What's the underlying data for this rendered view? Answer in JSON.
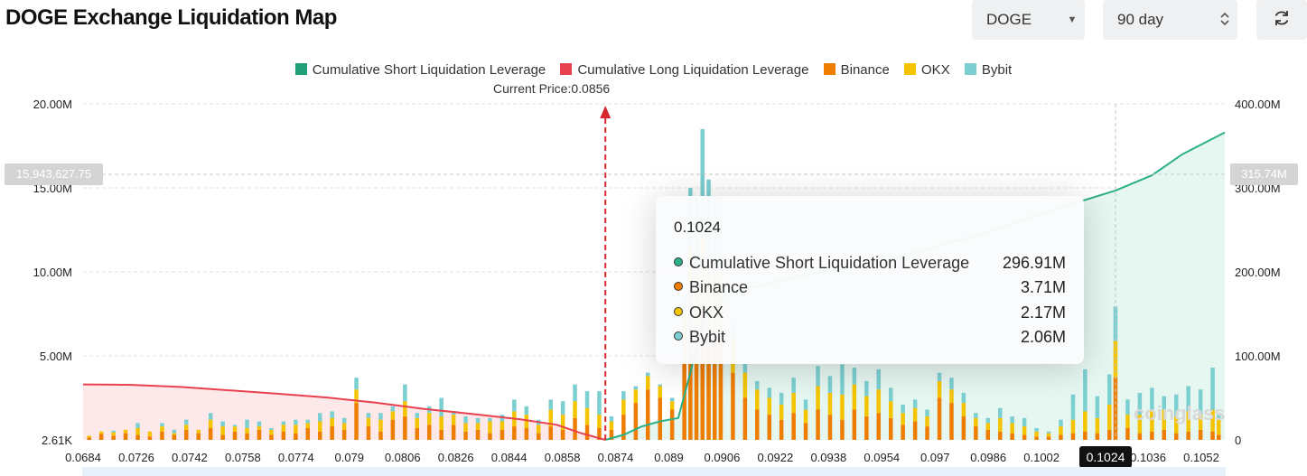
{
  "header": {
    "title": "DOGE Exchange Liquidation Map",
    "coin_select": "DOGE",
    "period_select": "90 day"
  },
  "current_price_label": "Current Price:0.0856",
  "crosshair": {
    "x_label": "0.1024",
    "left_value": "15,943,627.75",
    "right_value": "315.74M"
  },
  "tooltip": {
    "title": "0.1024",
    "rows": [
      {
        "name": "Cumulative Short Liquidation Leverage",
        "value": "296.91M",
        "color": "#2bb08a"
      },
      {
        "name": "Binance",
        "value": "3.71M",
        "color": "#ef7d00"
      },
      {
        "name": "OKX",
        "value": "2.17M",
        "color": "#f5c400"
      },
      {
        "name": "Bybit",
        "value": "2.06M",
        "color": "#7ccfd1"
      }
    ]
  },
  "watermark": "coinglass",
  "chart_data": {
    "type": "bar",
    "legend": [
      {
        "name": "Cumulative Short Liquidation Leverage",
        "color": "#1f9e78"
      },
      {
        "name": "Cumulative Long Liquidation Leverage",
        "color": "#e8414f"
      },
      {
        "name": "Binance",
        "color": "#ef7d00"
      },
      {
        "name": "OKX",
        "color": "#f5c400"
      },
      {
        "name": "Bybit",
        "color": "#7ccfd1"
      }
    ],
    "x_ticks": [
      "0.0684",
      "0.0726",
      "0.0742",
      "0.0758",
      "0.0774",
      "0.079",
      "0.0806",
      "0.0826",
      "0.0844",
      "0.0858",
      "0.0874",
      "0.089",
      "0.0906",
      "0.0922",
      "0.0938",
      "0.0954",
      "0.097",
      "0.0986",
      "0.1002",
      "0.1024",
      "0.1036",
      "0.1052"
    ],
    "x_range": [
      0.0684,
      0.106
    ],
    "y_left_ticks": [
      "2.61K",
      "5.00M",
      "10.00M",
      "15.00M",
      "20.00M"
    ],
    "y_left_range": [
      0,
      20000000
    ],
    "y_right_ticks": [
      "0",
      "100.00M",
      "200.00M",
      "300.00M",
      "400.00M"
    ],
    "y_right_range": [
      0,
      400000000
    ],
    "current_price": 0.0856,
    "long_cumulative": [
      [
        0.0684,
        66000000
      ],
      [
        0.07,
        65500000
      ],
      [
        0.0716,
        63000000
      ],
      [
        0.0732,
        59000000
      ],
      [
        0.0748,
        55000000
      ],
      [
        0.0764,
        50500000
      ],
      [
        0.078,
        44500000
      ],
      [
        0.0796,
        37000000
      ],
      [
        0.0812,
        31000000
      ],
      [
        0.0828,
        24500000
      ],
      [
        0.084,
        18000000
      ],
      [
        0.0848,
        8000000
      ],
      [
        0.0856,
        0
      ]
    ],
    "short_cumulative": [
      [
        0.0856,
        0
      ],
      [
        0.0862,
        6000000
      ],
      [
        0.0868,
        16000000
      ],
      [
        0.0874,
        22000000
      ],
      [
        0.088,
        26000000
      ],
      [
        0.0884,
        80000000
      ],
      [
        0.0888,
        140000000
      ],
      [
        0.0896,
        175000000
      ],
      [
        0.092,
        195000000
      ],
      [
        0.095,
        215000000
      ],
      [
        0.098,
        245000000
      ],
      [
        0.1,
        270000000
      ],
      [
        0.1024,
        296910000
      ],
      [
        0.1036,
        315000000
      ],
      [
        0.1046,
        340000000
      ],
      [
        0.106,
        366000000
      ]
    ],
    "bars_note": "Stacked liquidation volume bars (Binance, OKX, Bybit) per price level, approx.",
    "bars": [
      {
        "x": 0.0686,
        "binance": 150000,
        "okx": 100000,
        "bybit": 0
      },
      {
        "x": 0.069,
        "binance": 350000,
        "okx": 150000,
        "bybit": 0
      },
      {
        "x": 0.0694,
        "binance": 250000,
        "okx": 200000,
        "bybit": 100000
      },
      {
        "x": 0.0698,
        "binance": 400000,
        "okx": 200000,
        "bybit": 0
      },
      {
        "x": 0.0702,
        "binance": 300000,
        "okx": 400000,
        "bybit": 300000
      },
      {
        "x": 0.0706,
        "binance": 200000,
        "okx": 300000,
        "bybit": 0
      },
      {
        "x": 0.071,
        "binance": 500000,
        "okx": 300000,
        "bybit": 200000
      },
      {
        "x": 0.0714,
        "binance": 300000,
        "okx": 100000,
        "bybit": 200000
      },
      {
        "x": 0.0718,
        "binance": 600000,
        "okx": 300000,
        "bybit": 300000
      },
      {
        "x": 0.0722,
        "binance": 400000,
        "okx": 200000,
        "bybit": 0
      },
      {
        "x": 0.0726,
        "binance": 700000,
        "okx": 500000,
        "bybit": 400000
      },
      {
        "x": 0.073,
        "binance": 300000,
        "okx": 500000,
        "bybit": 300000
      },
      {
        "x": 0.0734,
        "binance": 500000,
        "okx": 300000,
        "bybit": 100000
      },
      {
        "x": 0.0738,
        "binance": 400000,
        "okx": 300000,
        "bybit": 500000
      },
      {
        "x": 0.0742,
        "binance": 600000,
        "okx": 200000,
        "bybit": 300000
      },
      {
        "x": 0.0746,
        "binance": 300000,
        "okx": 300000,
        "bybit": 100000
      },
      {
        "x": 0.075,
        "binance": 500000,
        "okx": 400000,
        "bybit": 200000
      },
      {
        "x": 0.0754,
        "binance": 400000,
        "okx": 500000,
        "bybit": 300000
      },
      {
        "x": 0.0758,
        "binance": 700000,
        "okx": 300000,
        "bybit": 200000
      },
      {
        "x": 0.0762,
        "binance": 500000,
        "okx": 600000,
        "bybit": 500000
      },
      {
        "x": 0.0766,
        "binance": 800000,
        "okx": 500000,
        "bybit": 400000
      },
      {
        "x": 0.077,
        "binance": 600000,
        "okx": 400000,
        "bybit": 300000
      },
      {
        "x": 0.0774,
        "binance": 2200000,
        "okx": 800000,
        "bybit": 700000
      },
      {
        "x": 0.0778,
        "binance": 800000,
        "okx": 500000,
        "bybit": 300000
      },
      {
        "x": 0.0782,
        "binance": 500000,
        "okx": 700000,
        "bybit": 400000
      },
      {
        "x": 0.0786,
        "binance": 1200000,
        "okx": 500000,
        "bybit": 300000
      },
      {
        "x": 0.079,
        "binance": 1400000,
        "okx": 900000,
        "bybit": 1000000
      },
      {
        "x": 0.0794,
        "binance": 700000,
        "okx": 600000,
        "bybit": 300000
      },
      {
        "x": 0.0798,
        "binance": 900000,
        "okx": 700000,
        "bybit": 400000
      },
      {
        "x": 0.0802,
        "binance": 600000,
        "okx": 800000,
        "bybit": 1100000
      },
      {
        "x": 0.0806,
        "binance": 900000,
        "okx": 600000,
        "bybit": 200000
      },
      {
        "x": 0.081,
        "binance": 500000,
        "okx": 500000,
        "bybit": 400000
      },
      {
        "x": 0.0814,
        "binance": 600000,
        "okx": 400000,
        "bybit": 300000
      },
      {
        "x": 0.0818,
        "binance": 400000,
        "okx": 700000,
        "bybit": 200000
      },
      {
        "x": 0.0822,
        "binance": 600000,
        "okx": 500000,
        "bybit": 400000
      },
      {
        "x": 0.0826,
        "binance": 800000,
        "okx": 900000,
        "bybit": 700000
      },
      {
        "x": 0.083,
        "binance": 700000,
        "okx": 800000,
        "bybit": 500000
      },
      {
        "x": 0.0834,
        "binance": 400000,
        "okx": 500000,
        "bybit": 300000
      },
      {
        "x": 0.0838,
        "binance": 800000,
        "okx": 1000000,
        "bybit": 600000
      },
      {
        "x": 0.0842,
        "binance": 600000,
        "okx": 900000,
        "bybit": 800000
      },
      {
        "x": 0.0846,
        "binance": 1300000,
        "okx": 1000000,
        "bybit": 1000000
      },
      {
        "x": 0.085,
        "binance": 900000,
        "okx": 1000000,
        "bybit": 1000000
      },
      {
        "x": 0.0854,
        "binance": 700000,
        "okx": 800000,
        "bybit": 1400000
      },
      {
        "x": 0.0858,
        "binance": 600000,
        "okx": 500000,
        "bybit": 300000
      },
      {
        "x": 0.0862,
        "binance": 1500000,
        "okx": 900000,
        "bybit": 500000
      },
      {
        "x": 0.0866,
        "binance": 2200000,
        "okx": 800000,
        "bybit": 200000
      },
      {
        "x": 0.087,
        "binance": 3000000,
        "okx": 800000,
        "bybit": 200000
      },
      {
        "x": 0.0874,
        "binance": 2500000,
        "okx": 700000,
        "bybit": 100000
      },
      {
        "x": 0.0878,
        "binance": 1800000,
        "okx": 500000,
        "bybit": 200000
      },
      {
        "x": 0.0882,
        "binance": 6000000,
        "okx": 1500000,
        "bybit": 1200000
      },
      {
        "x": 0.0884,
        "binance": 9000000,
        "okx": 2500000,
        "bybit": 3500000
      },
      {
        "x": 0.0886,
        "binance": 7000000,
        "okx": 3000000,
        "bybit": 4500000
      },
      {
        "x": 0.0888,
        "binance": 8000000,
        "okx": 4000000,
        "bybit": 6500000
      },
      {
        "x": 0.089,
        "binance": 7000000,
        "okx": 3500000,
        "bybit": 5000000
      },
      {
        "x": 0.0892,
        "binance": 6500000,
        "okx": 3500000,
        "bybit": 4500000
      },
      {
        "x": 0.0894,
        "binance": 7000000,
        "okx": 3000000,
        "bybit": 4000000
      },
      {
        "x": 0.0898,
        "binance": 4000000,
        "okx": 2000000,
        "bybit": 1000000
      },
      {
        "x": 0.0902,
        "binance": 2500000,
        "okx": 1500000,
        "bybit": 600000
      },
      {
        "x": 0.0906,
        "binance": 1800000,
        "okx": 1200000,
        "bybit": 500000
      },
      {
        "x": 0.091,
        "binance": 1500000,
        "okx": 1000000,
        "bybit": 600000
      },
      {
        "x": 0.0914,
        "binance": 1200000,
        "okx": 900000,
        "bybit": 700000
      },
      {
        "x": 0.0918,
        "binance": 1600000,
        "okx": 1200000,
        "bybit": 900000
      },
      {
        "x": 0.0922,
        "binance": 1000000,
        "okx": 800000,
        "bybit": 600000
      },
      {
        "x": 0.0926,
        "binance": 1800000,
        "okx": 1400000,
        "bybit": 1200000
      },
      {
        "x": 0.093,
        "binance": 1500000,
        "okx": 1300000,
        "bybit": 1000000
      },
      {
        "x": 0.0934,
        "binance": 1200000,
        "okx": 1500000,
        "bybit": 1800000
      },
      {
        "x": 0.0938,
        "binance": 1800000,
        "okx": 1500000,
        "bybit": 1000000
      },
      {
        "x": 0.0942,
        "binance": 1400000,
        "okx": 1200000,
        "bybit": 900000
      },
      {
        "x": 0.0946,
        "binance": 1600000,
        "okx": 1400000,
        "bybit": 1200000
      },
      {
        "x": 0.095,
        "binance": 1300000,
        "okx": 1000000,
        "bybit": 800000
      },
      {
        "x": 0.0954,
        "binance": 900000,
        "okx": 700000,
        "bybit": 500000
      },
      {
        "x": 0.0958,
        "binance": 1100000,
        "okx": 800000,
        "bybit": 500000
      },
      {
        "x": 0.0962,
        "binance": 800000,
        "okx": 600000,
        "bybit": 400000
      },
      {
        "x": 0.0966,
        "binance": 2500000,
        "okx": 1000000,
        "bybit": 500000
      },
      {
        "x": 0.097,
        "binance": 2200000,
        "okx": 800000,
        "bybit": 700000
      },
      {
        "x": 0.0974,
        "binance": 1400000,
        "okx": 800000,
        "bybit": 600000
      },
      {
        "x": 0.0978,
        "binance": 800000,
        "okx": 500000,
        "bybit": 300000
      },
      {
        "x": 0.0982,
        "binance": 600000,
        "okx": 400000,
        "bybit": 300000
      },
      {
        "x": 0.0986,
        "binance": 500000,
        "okx": 800000,
        "bybit": 600000
      },
      {
        "x": 0.099,
        "binance": 400000,
        "okx": 600000,
        "bybit": 400000
      },
      {
        "x": 0.0994,
        "binance": 300000,
        "okx": 500000,
        "bybit": 500000
      },
      {
        "x": 0.0998,
        "binance": 200000,
        "okx": 300000,
        "bybit": 200000
      },
      {
        "x": 0.1002,
        "binance": 200000,
        "okx": 200000,
        "bybit": 100000
      },
      {
        "x": 0.1006,
        "binance": 300000,
        "okx": 500000,
        "bybit": 400000
      },
      {
        "x": 0.101,
        "binance": 400000,
        "okx": 800000,
        "bybit": 1500000
      },
      {
        "x": 0.1014,
        "binance": 500000,
        "okx": 1200000,
        "bybit": 2500000
      },
      {
        "x": 0.1018,
        "binance": 400000,
        "okx": 900000,
        "bybit": 1300000
      },
      {
        "x": 0.1022,
        "binance": 600000,
        "okx": 1500000,
        "bybit": 1800000
      },
      {
        "x": 0.1024,
        "binance": 3710000,
        "okx": 2170000,
        "bybit": 2060000
      },
      {
        "x": 0.1028,
        "binance": 700000,
        "okx": 800000,
        "bybit": 900000
      },
      {
        "x": 0.1032,
        "binance": 400000,
        "okx": 1100000,
        "bybit": 1300000
      },
      {
        "x": 0.1036,
        "binance": 500000,
        "okx": 1300000,
        "bybit": 1300000
      },
      {
        "x": 0.104,
        "binance": 600000,
        "okx": 1200000,
        "bybit": 800000
      },
      {
        "x": 0.1044,
        "binance": 400000,
        "okx": 1000000,
        "bybit": 1300000
      },
      {
        "x": 0.1048,
        "binance": 500000,
        "okx": 1200000,
        "bybit": 1500000
      },
      {
        "x": 0.1052,
        "binance": 600000,
        "okx": 900000,
        "bybit": 1500000
      },
      {
        "x": 0.1056,
        "binance": 500000,
        "okx": 1300000,
        "bybit": 2500000
      },
      {
        "x": 0.1058,
        "binance": 300000,
        "okx": 900000,
        "bybit": 400000
      }
    ]
  }
}
